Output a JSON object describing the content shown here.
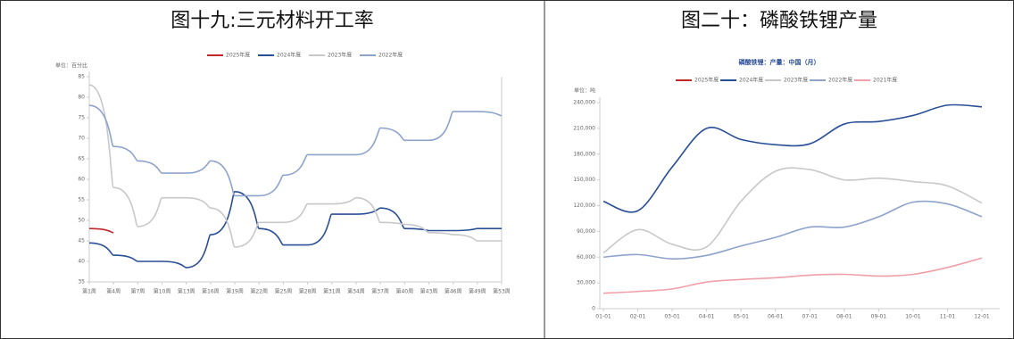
{
  "chart_data": [
    {
      "type": "line",
      "title": "图十九:三元材料开工率",
      "y_label": "单位：百分比",
      "curve": "step",
      "categories": [
        "第1周",
        "第4周",
        "第7周",
        "第10周",
        "第13周",
        "第16周",
        "第19周",
        "第22周",
        "第25周",
        "第28周",
        "第31周",
        "第34周",
        "第37周",
        "第40周",
        "第43周",
        "第46周",
        "第49周",
        "第53周"
      ],
      "series": [
        {
          "name": "2025年度",
          "color": "#c0282d",
          "values": [
            48,
            47,
            null,
            null,
            null,
            null,
            null,
            null,
            null,
            null,
            null,
            null,
            null,
            null,
            null,
            null,
            null,
            null
          ]
        },
        {
          "name": "2024年度",
          "color": "#2a4e96",
          "values": [
            44.5,
            41.5,
            40,
            40,
            38.5,
            46.5,
            57,
            48,
            44,
            44,
            51.5,
            51.5,
            53,
            48,
            47.5,
            47.5,
            48,
            48
          ]
        },
        {
          "name": "2023年度",
          "color": "#c8c8c8",
          "values": [
            83,
            58,
            48.5,
            55.5,
            55.5,
            53,
            43.5,
            49.5,
            49.5,
            54,
            54,
            55.5,
            49.5,
            49,
            47,
            46.5,
            45,
            45
          ]
        },
        {
          "name": "2022年度",
          "color": "#8ea3cc",
          "values": [
            78,
            68,
            64.5,
            61.5,
            61.5,
            64.5,
            56,
            56,
            61,
            66,
            66,
            66,
            72.5,
            69.5,
            69.5,
            76.5,
            76.5,
            75.5
          ]
        }
      ],
      "ylim": [
        35,
        85
      ],
      "yticks": [
        35,
        40,
        45,
        50,
        55,
        60,
        65,
        70,
        75,
        80,
        85
      ]
    },
    {
      "type": "line",
      "title": "图二十：磷酸铁锂产量",
      "subtitle": "磷酸铁锂：产量：中国（月）",
      "y_label": "单位：吨",
      "curve": "smooth",
      "categories": [
        "01-01",
        "02-01",
        "03-01",
        "04-01",
        "05-01",
        "06-01",
        "07-01",
        "08-01",
        "09-01",
        "10-01",
        "11-01",
        "12-01"
      ],
      "series": [
        {
          "name": "2025年度",
          "color": "#c0282d",
          "values": [
            null,
            null,
            null,
            null,
            null,
            null,
            null,
            null,
            null,
            null,
            null,
            null
          ]
        },
        {
          "name": "2024年度",
          "color": "#2a4e96",
          "values": [
            125000,
            114000,
            165000,
            210000,
            197000,
            191000,
            192000,
            215000,
            218000,
            225000,
            237000,
            235000
          ]
        },
        {
          "name": "2023年度",
          "color": "#c8c8c8",
          "values": [
            65000,
            92000,
            75000,
            72000,
            125000,
            160000,
            162000,
            150000,
            152000,
            148000,
            143000,
            123000
          ]
        },
        {
          "name": "2022年度",
          "color": "#8ea3cc",
          "values": [
            60000,
            63000,
            58000,
            62000,
            73000,
            83000,
            95000,
            95000,
            107000,
            124000,
            122000,
            107000
          ]
        },
        {
          "name": "2021年度",
          "color": "#f0a0a8",
          "values": [
            18000,
            20000,
            23000,
            31000,
            34000,
            36000,
            39000,
            40000,
            38000,
            40000,
            48000,
            59000
          ]
        }
      ],
      "ylim": [
        0,
        240000
      ],
      "yticks": [
        0,
        {
          "value": 30000,
          "label": "30,000"
        },
        {
          "value": 60000,
          "label": "60,000"
        },
        {
          "value": 90000,
          "label": "90,000"
        },
        {
          "value": 120000,
          "label": "120,000"
        },
        {
          "value": 150000,
          "label": "150,000"
        },
        {
          "value": 180000,
          "label": "180,000"
        },
        {
          "value": 210000,
          "label": "210,000"
        },
        {
          "value": 240000,
          "label": "240,000"
        }
      ]
    }
  ]
}
